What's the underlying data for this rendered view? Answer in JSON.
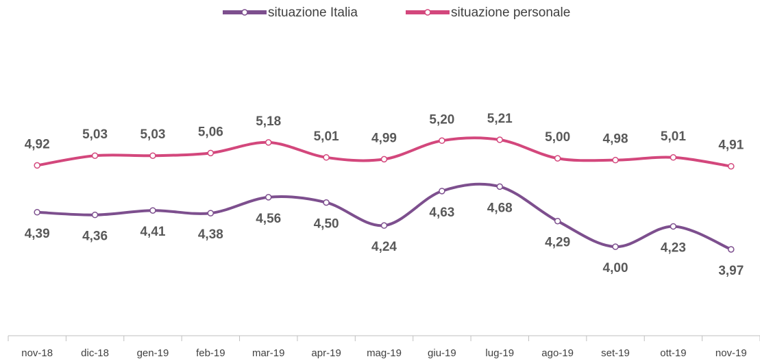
{
  "chart_data": {
    "type": "line",
    "categories": [
      "nov-18",
      "dic-18",
      "gen-19",
      "feb-19",
      "mar-19",
      "apr-19",
      "mag-19",
      "giu-19",
      "lug-19",
      "ago-19",
      "set-19",
      "ott-19",
      "nov-19"
    ],
    "series": [
      {
        "name": "situazione Italia",
        "color": "#7d4f8e",
        "values": [
          4.39,
          4.36,
          4.41,
          4.38,
          4.56,
          4.5,
          4.24,
          4.63,
          4.68,
          4.29,
          4.0,
          4.23,
          3.97
        ],
        "value_labels": [
          "4,39",
          "4,36",
          "4,41",
          "4,38",
          "4,56",
          "4,50",
          "4,24",
          "4,63",
          "4,68",
          "4,29",
          "4,00",
          "4,23",
          "3,97"
        ]
      },
      {
        "name": "situazione personale",
        "color": "#d3477c",
        "values": [
          4.92,
          5.03,
          5.03,
          5.06,
          5.18,
          5.01,
          4.99,
          5.2,
          5.21,
          5.0,
          4.98,
          5.01,
          4.91
        ],
        "value_labels": [
          "4,92",
          "5,03",
          "5,03",
          "5,06",
          "5,18",
          "5,01",
          "4,99",
          "5,20",
          "5,21",
          "5,00",
          "4,98",
          "5,01",
          "4,91"
        ]
      }
    ]
  }
}
